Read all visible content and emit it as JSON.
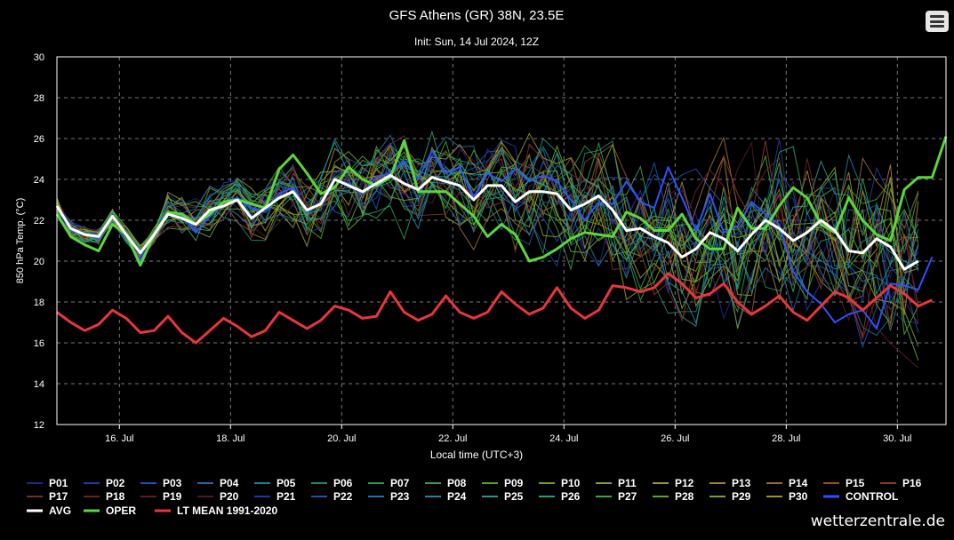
{
  "chart_data": {
    "type": "line",
    "title": "GFS Athens (GR) 38N, 23.5E",
    "subtitle": "Init: Sun, 14 Jul 2024, 12Z",
    "xlabel": "Local time (UTC+3)",
    "ylabel": "850 hPa Temp. (°C)",
    "ylim": [
      12,
      30
    ],
    "yticks": [
      12,
      14,
      16,
      18,
      20,
      22,
      24,
      26,
      28,
      30
    ],
    "xlim": [
      "2024-07-14 21:00",
      "2024-07-30 21:00"
    ],
    "xtick_labels": [
      "16. Jul",
      "18. Jul",
      "20. Jul",
      "22. Jul",
      "24. Jul",
      "26. Jul",
      "28. Jul",
      "30. Jul"
    ],
    "xtick_dates": [
      "2024-07-16",
      "2024-07-18",
      "2024-07-20",
      "2024-07-22",
      "2024-07-24",
      "2024-07-26",
      "2024-07-28",
      "2024-07-30"
    ],
    "x_start": "2024-07-14 21:00",
    "x_step_hours": 6,
    "grid": true,
    "legend_position": "bottom",
    "colors": {
      "avg": "#ffffff",
      "oper": "#5bd63c",
      "lt_mean": "#e8363b",
      "control": "#2c52ff",
      "grid": "#777777",
      "axis": "#ffffff"
    },
    "series": [
      {
        "name": "OPER",
        "color": "#5bd63c",
        "values": [
          22.3,
          21.2,
          20.8,
          20.5,
          21.8,
          21.3,
          19.8,
          21.3,
          22.4,
          22.3,
          21.8,
          22.3,
          22.9,
          23.0,
          22.8,
          22.6,
          24.5,
          25.2,
          24.3,
          23.3,
          23.6,
          24.6,
          24.0,
          23.7,
          24.1,
          25.9,
          23.4,
          23.4,
          23.4,
          22.8,
          22.2,
          21.2,
          21.8,
          21.3,
          20.0,
          20.2,
          20.6,
          21.1,
          21.4,
          21.3,
          21.2,
          22.4,
          22.1,
          21.5,
          21.5,
          22.3,
          21.1,
          20.6,
          20.6,
          22.6,
          21.6,
          21.6,
          22.7,
          23.6,
          23.1,
          21.8,
          21.4,
          23.1,
          22.0,
          21.3,
          21.0,
          23.5,
          24.1,
          24.1,
          26.1
        ]
      },
      {
        "name": "AVG",
        "color": "#ffffff",
        "values": [
          22.7,
          21.6,
          21.3,
          21.2,
          22.2,
          21.3,
          20.4,
          21.3,
          22.3,
          22.1,
          21.8,
          22.5,
          22.7,
          23.0,
          22.1,
          22.6,
          23.1,
          23.4,
          22.5,
          22.8,
          24.0,
          23.7,
          23.4,
          23.8,
          24.2,
          23.8,
          23.5,
          24.1,
          23.9,
          23.7,
          23.0,
          23.7,
          23.7,
          22.9,
          23.4,
          23.4,
          23.3,
          22.5,
          22.8,
          23.2,
          22.5,
          21.5,
          21.6,
          21.2,
          20.9,
          20.2,
          20.6,
          21.4,
          21.1,
          20.5,
          21.3,
          22.0,
          21.6,
          21.0,
          21.4,
          22.0,
          21.5,
          20.5,
          20.4,
          21.1,
          20.7,
          19.6,
          20.0
        ]
      },
      {
        "name": "CONTROL",
        "color": "#2c52ff",
        "values": [
          22.7,
          21.5,
          21.3,
          21.1,
          22.2,
          21.2,
          20.0,
          21.2,
          22.4,
          22.3,
          21.4,
          22.2,
          22.9,
          23.1,
          22.6,
          22.4,
          23.3,
          23.6,
          22.4,
          22.9,
          24.0,
          23.8,
          23.3,
          24.1,
          24.3,
          24.9,
          24.0,
          25.4,
          24.3,
          24.6,
          23.1,
          24.3,
          23.9,
          24.5,
          23.9,
          24.2,
          23.9,
          23.0,
          22.0,
          22.9,
          22.8,
          23.9,
          22.9,
          22.6,
          24.6,
          23.1,
          21.5,
          23.3,
          21.4,
          21.7,
          22.9,
          22.3,
          21.8,
          19.5,
          18.5,
          17.9,
          17.0,
          17.4,
          17.6,
          16.7,
          18.9,
          18.8,
          18.6,
          20.2
        ]
      },
      {
        "name": "LT MEAN 1991-2020",
        "color": "#e8363b",
        "values": [
          17.5,
          17.0,
          16.6,
          16.9,
          17.6,
          17.2,
          16.5,
          16.6,
          17.3,
          16.5,
          16.0,
          16.6,
          17.2,
          16.8,
          16.3,
          16.6,
          17.5,
          17.1,
          16.7,
          17.1,
          17.8,
          17.6,
          17.2,
          17.3,
          18.5,
          17.5,
          17.1,
          17.4,
          18.3,
          17.5,
          17.2,
          17.5,
          18.5,
          17.9,
          17.4,
          17.7,
          18.7,
          17.7,
          17.2,
          17.6,
          18.8,
          18.7,
          18.5,
          18.7,
          19.4,
          18.9,
          18.2,
          18.4,
          18.9,
          18.0,
          17.4,
          17.8,
          18.3,
          17.5,
          17.1,
          17.8,
          18.5,
          18.2,
          17.6,
          18.2,
          18.8,
          18.4,
          17.8,
          18.1
        ]
      }
    ],
    "ensemble_members": [
      {
        "name": "P01",
        "color": "#1a2a8c"
      },
      {
        "name": "P02",
        "color": "#1f3aa8"
      },
      {
        "name": "P03",
        "color": "#2150b8"
      },
      {
        "name": "P04",
        "color": "#1e6aa6"
      },
      {
        "name": "P05",
        "color": "#1d7f9a"
      },
      {
        "name": "P06",
        "color": "#1f8a6a"
      },
      {
        "name": "P07",
        "color": "#2a9a4e"
      },
      {
        "name": "P08",
        "color": "#3aa23a"
      },
      {
        "name": "P09",
        "color": "#4fa32a"
      },
      {
        "name": "P10",
        "color": "#6aa326"
      },
      {
        "name": "P11",
        "color": "#87a02a"
      },
      {
        "name": "P12",
        "color": "#9b972a"
      },
      {
        "name": "P13",
        "color": "#a5852c"
      },
      {
        "name": "P14",
        "color": "#a06a2c"
      },
      {
        "name": "P15",
        "color": "#9a522a"
      },
      {
        "name": "P16",
        "color": "#8e3a2a"
      },
      {
        "name": "P17",
        "color": "#7e2a2a"
      },
      {
        "name": "P18",
        "color": "#6a2424"
      },
      {
        "name": "P19",
        "color": "#5a1e24"
      },
      {
        "name": "P20",
        "color": "#4a1a2c"
      },
      {
        "name": "P21",
        "color": "#1e3a9a"
      },
      {
        "name": "P22",
        "color": "#1a55aa"
      },
      {
        "name": "P23",
        "color": "#1c73b0"
      },
      {
        "name": "P24",
        "color": "#1e86a6"
      },
      {
        "name": "P25",
        "color": "#209a8a"
      },
      {
        "name": "P26",
        "color": "#24a06a"
      },
      {
        "name": "P27",
        "color": "#3aa844"
      },
      {
        "name": "P28",
        "color": "#5aa830"
      },
      {
        "name": "P29",
        "color": "#7aa22a"
      },
      {
        "name": "P30",
        "color": "#98962a"
      }
    ]
  },
  "legend": {
    "items": [
      {
        "label": "P01",
        "color": "#1a2a8c"
      },
      {
        "label": "P02",
        "color": "#1f3aa8"
      },
      {
        "label": "P03",
        "color": "#2150b8"
      },
      {
        "label": "P04",
        "color": "#1e6aa6"
      },
      {
        "label": "P05",
        "color": "#1d7f9a"
      },
      {
        "label": "P06",
        "color": "#1f8a6a"
      },
      {
        "label": "P07",
        "color": "#2a9a4e"
      },
      {
        "label": "P08",
        "color": "#3aa23a"
      },
      {
        "label": "P09",
        "color": "#4fa32a"
      },
      {
        "label": "P10",
        "color": "#6aa326"
      },
      {
        "label": "P11",
        "color": "#87a02a"
      },
      {
        "label": "P12",
        "color": "#9b972a"
      },
      {
        "label": "P13",
        "color": "#a5852c"
      },
      {
        "label": "P14",
        "color": "#a06a2c"
      },
      {
        "label": "P15",
        "color": "#9a522a"
      },
      {
        "label": "P16",
        "color": "#8e3a2a"
      },
      {
        "label": "P17",
        "color": "#7e2a2a"
      },
      {
        "label": "P18",
        "color": "#6a2424"
      },
      {
        "label": "P19",
        "color": "#5a1e24"
      },
      {
        "label": "P20",
        "color": "#4a1a2c"
      },
      {
        "label": "P21",
        "color": "#1e3a9a"
      },
      {
        "label": "P22",
        "color": "#1a55aa"
      },
      {
        "label": "P23",
        "color": "#1c73b0"
      },
      {
        "label": "P24",
        "color": "#1e86a6"
      },
      {
        "label": "P25",
        "color": "#209a8a"
      },
      {
        "label": "P26",
        "color": "#24a06a"
      },
      {
        "label": "P27",
        "color": "#3aa844"
      },
      {
        "label": "P28",
        "color": "#5aa830"
      },
      {
        "label": "P29",
        "color": "#7aa22a"
      },
      {
        "label": "P30",
        "color": "#98962a"
      },
      {
        "label": "CONTROL",
        "color": "#2c52ff"
      },
      {
        "label": "AVG",
        "color": "#ffffff"
      },
      {
        "label": "OPER",
        "color": "#5bd63c"
      },
      {
        "label": "LT MEAN 1991-2020",
        "color": "#e8363b"
      }
    ]
  },
  "watermark": "wetterzentrale.de",
  "menu": {
    "icon": "hamburger-menu-icon"
  }
}
